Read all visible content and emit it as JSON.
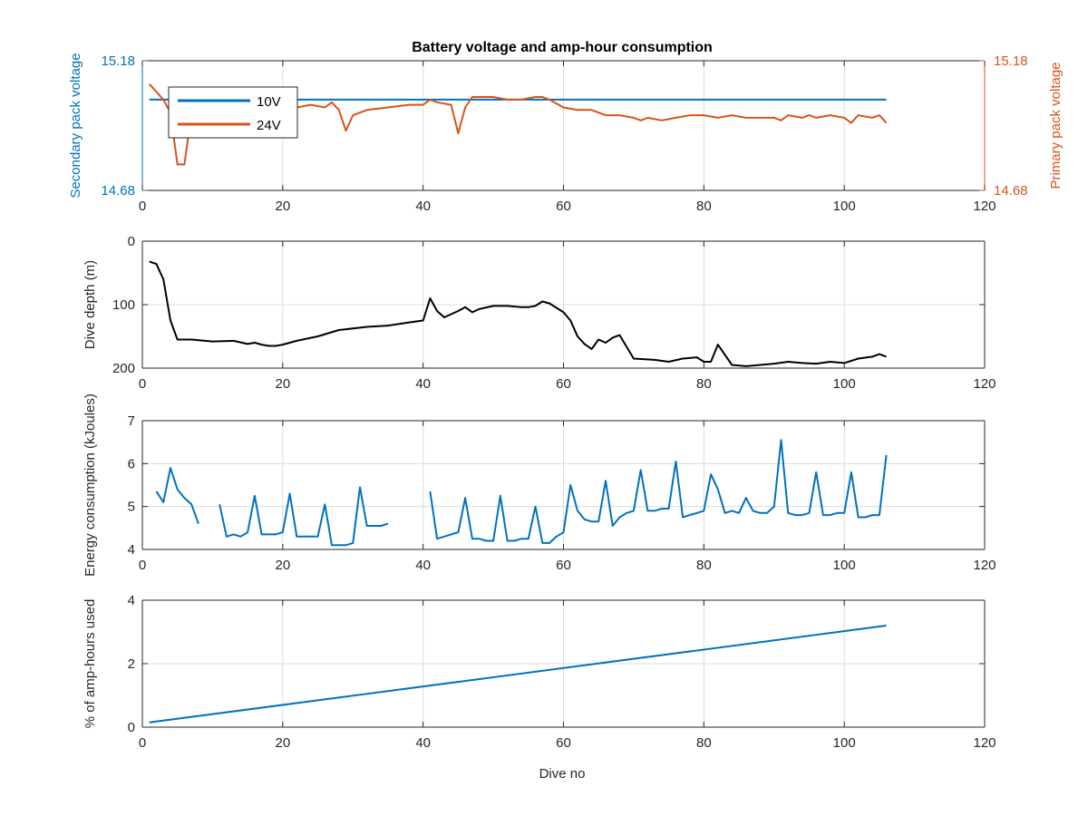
{
  "figure": {
    "title": "Battery voltage and amp-hour consumption",
    "xlabel": "Dive no"
  },
  "colors": {
    "blue": "#0072bd",
    "orange": "#d95319",
    "black": "#000000",
    "grid": "#dcdcdc",
    "axis": "#262626"
  },
  "chart_data": [
    {
      "type": "line",
      "title": "Battery voltage and amp-hour consumption",
      "xlabel": "",
      "ylabel": "Secondary pack voltage",
      "ylabel_right": "Primary pack voltage",
      "xlim": [
        0,
        120
      ],
      "ylim": [
        14.68,
        15.18
      ],
      "ylim_right": [
        14.68,
        15.18
      ],
      "xticks": [
        0,
        20,
        40,
        60,
        80,
        100,
        120
      ],
      "yticks": [
        14.68,
        15.18
      ],
      "yticks_right": [
        14.68,
        15.18
      ],
      "grid": true,
      "legend": {
        "placement": "top-left",
        "entries": [
          "10V",
          "24V"
        ]
      },
      "series": [
        {
          "name": "10V",
          "axis": "left",
          "color": "#0072bd",
          "x": [
            1,
            106
          ],
          "y": [
            15.03,
            15.03
          ]
        },
        {
          "name": "24V",
          "axis": "right",
          "color": "#d95319",
          "x": [
            1,
            2,
            3,
            4,
            5,
            6,
            7,
            8,
            9,
            10,
            12,
            14,
            16,
            18,
            20,
            22,
            24,
            26,
            27,
            28,
            29,
            30,
            32,
            35,
            38,
            40,
            41,
            42,
            44,
            45,
            46,
            47,
            48,
            50,
            52,
            54,
            56,
            57,
            58,
            60,
            62,
            64,
            66,
            68,
            70,
            71,
            72,
            74,
            76,
            78,
            80,
            82,
            84,
            86,
            88,
            90,
            91,
            92,
            94,
            95,
            96,
            98,
            100,
            101,
            102,
            104,
            105,
            106
          ],
          "y": [
            15.09,
            15.06,
            15.03,
            14.98,
            14.78,
            14.78,
            14.98,
            14.98,
            14.99,
            14.99,
            14.99,
            14.99,
            15.0,
            15.0,
            15.0,
            15.0,
            15.01,
            15.0,
            15.02,
            14.99,
            14.91,
            14.97,
            14.99,
            15.0,
            15.01,
            15.01,
            15.03,
            15.02,
            15.01,
            14.9,
            15.0,
            15.04,
            15.04,
            15.04,
            15.03,
            15.03,
            15.04,
            15.04,
            15.03,
            15.0,
            14.99,
            14.99,
            14.97,
            14.97,
            14.96,
            14.95,
            14.96,
            14.95,
            14.96,
            14.97,
            14.97,
            14.96,
            14.97,
            14.96,
            14.96,
            14.96,
            14.95,
            14.97,
            14.96,
            14.97,
            14.96,
            14.97,
            14.96,
            14.94,
            14.97,
            14.96,
            14.97,
            14.94
          ]
        }
      ]
    },
    {
      "type": "line",
      "xlabel": "",
      "ylabel": "Dive depth (m)",
      "xlim": [
        0,
        120
      ],
      "ylim": [
        0,
        200
      ],
      "yreverse": true,
      "xticks": [
        0,
        20,
        40,
        60,
        80,
        100,
        120
      ],
      "yticks": [
        0,
        100,
        200
      ],
      "grid": true,
      "series": [
        {
          "color": "#000000",
          "x": [
            1,
            2,
            3,
            4,
            5,
            7,
            10,
            13,
            15,
            16,
            17,
            18,
            19,
            20,
            22,
            25,
            28,
            32,
            35,
            38,
            40,
            41,
            42,
            43,
            45,
            46,
            47,
            48,
            50,
            52,
            54,
            55,
            56,
            57,
            58,
            60,
            61,
            62,
            63,
            64,
            65,
            66,
            67,
            68,
            70,
            73,
            75,
            77,
            79,
            80,
            81,
            82,
            84,
            86,
            88,
            90,
            92,
            94,
            96,
            98,
            100,
            102,
            104,
            105,
            106
          ],
          "y": [
            32,
            36,
            60,
            125,
            155,
            155,
            158,
            157,
            162,
            160,
            163,
            165,
            165,
            163,
            157,
            150,
            140,
            135,
            133,
            128,
            125,
            90,
            110,
            120,
            110,
            104,
            112,
            107,
            102,
            102,
            104,
            104,
            102,
            95,
            98,
            112,
            125,
            150,
            162,
            170,
            155,
            160,
            152,
            148,
            185,
            187,
            190,
            185,
            183,
            190,
            190,
            163,
            195,
            197,
            195,
            193,
            190,
            192,
            193,
            190,
            192,
            185,
            182,
            178,
            182
          ]
        }
      ]
    },
    {
      "type": "line",
      "xlabel": "",
      "ylabel": "Energy consumption (kJoules)",
      "xlim": [
        0,
        120
      ],
      "ylim": [
        4,
        7
      ],
      "xticks": [
        0,
        20,
        40,
        60,
        80,
        100,
        120
      ],
      "yticks": [
        4,
        5,
        6,
        7
      ],
      "grid": true,
      "series": [
        {
          "color": "#0072bd",
          "segments": [
            {
              "x": [
                2,
                3,
                4,
                5,
                6,
                7,
                8
              ],
              "y": [
                5.35,
                5.1,
                5.9,
                5.4,
                5.2,
                5.05,
                4.6
              ]
            },
            {
              "x": [
                11,
                12,
                13,
                14,
                15,
                16,
                17,
                18,
                19,
                20,
                21,
                22,
                23,
                24,
                25,
                26,
                27,
                28,
                29,
                30,
                31,
                32,
                33,
                34,
                35
              ],
              "y": [
                5.05,
                4.3,
                4.35,
                4.3,
                4.4,
                5.25,
                4.35,
                4.35,
                4.35,
                4.4,
                5.3,
                4.3,
                4.3,
                4.3,
                4.3,
                5.05,
                4.1,
                4.1,
                4.1,
                4.15,
                5.45,
                4.55,
                4.55,
                4.55,
                4.6
              ]
            },
            {
              "x": [
                41,
                42,
                43,
                44,
                45,
                46,
                47,
                48,
                49,
                50,
                51,
                52,
                53,
                54,
                55,
                56,
                57,
                58,
                59,
                60,
                61,
                62,
                63,
                64,
                65,
                66,
                67,
                68,
                69,
                70,
                71,
                72,
                73,
                74,
                75,
                76,
                77,
                78,
                79,
                80,
                81,
                82,
                83,
                84,
                85,
                86,
                87,
                88,
                89,
                90,
                91,
                92,
                93,
                94,
                95,
                96,
                97,
                98,
                99,
                100,
                101,
                102,
                103,
                104,
                105,
                106
              ],
              "y": [
                5.35,
                4.25,
                4.3,
                4.35,
                4.4,
                5.2,
                4.25,
                4.25,
                4.2,
                4.2,
                5.25,
                4.2,
                4.2,
                4.25,
                4.25,
                5.0,
                4.15,
                4.15,
                4.3,
                4.4,
                5.5,
                4.9,
                4.7,
                4.65,
                4.65,
                5.6,
                4.55,
                4.75,
                4.85,
                4.9,
                5.85,
                4.9,
                4.9,
                4.95,
                4.95,
                6.05,
                4.75,
                4.8,
                4.85,
                4.9,
                5.75,
                5.4,
                4.85,
                4.9,
                4.85,
                5.2,
                4.9,
                4.85,
                4.85,
                5.0,
                6.55,
                4.85,
                4.8,
                4.8,
                4.85,
                5.8,
                4.8,
                4.8,
                4.85,
                4.85,
                5.8,
                4.75,
                4.75,
                4.8,
                4.8,
                6.2
              ]
            }
          ]
        }
      ]
    },
    {
      "type": "line",
      "xlabel": "Dive no",
      "ylabel": "% of amp-hours used",
      "xlim": [
        0,
        120
      ],
      "ylim": [
        0,
        4
      ],
      "xticks": [
        0,
        20,
        40,
        60,
        80,
        100,
        120
      ],
      "yticks": [
        0,
        2,
        4
      ],
      "grid": true,
      "series": [
        {
          "color": "#0072bd",
          "x": [
            1,
            106
          ],
          "y": [
            0.15,
            3.2
          ]
        }
      ]
    }
  ]
}
